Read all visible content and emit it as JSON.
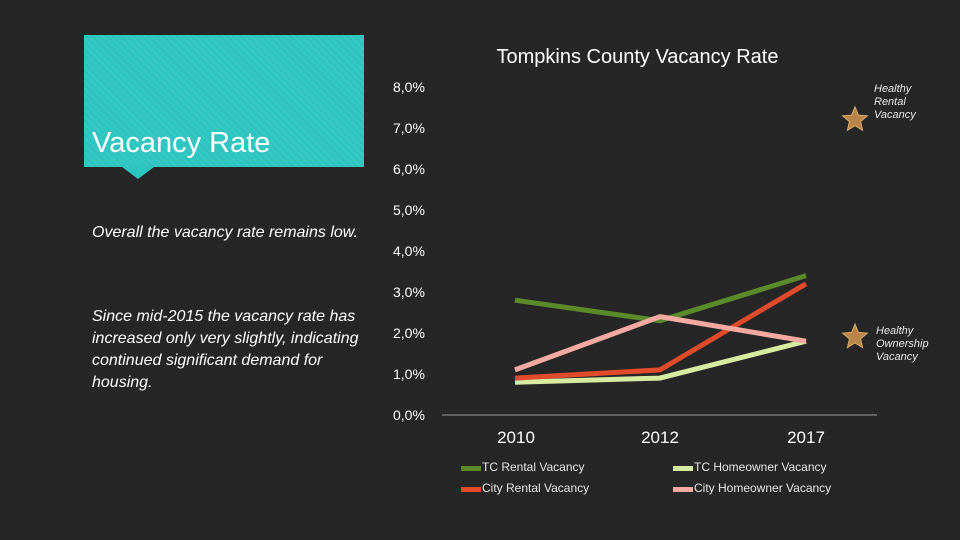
{
  "sidebar": {
    "heading": "Vacancy Rate",
    "paragraph1": "Overall the vacancy rate remains low.",
    "paragraph2": "Since mid-2015 the vacancy rate has increased only very slightly, indicating continued significant demand for housing."
  },
  "annotations": {
    "healthy_rental": "Healthy\nRental\nVacancy",
    "healthy_rental_value": 7.2,
    "healthy_ownership": "Healthy\nOwnership\nVacancy",
    "healthy_ownership_value": 1.9
  },
  "colors": {
    "tc_rental": "#5b8a2a",
    "tc_homeowner": "#d6eba0",
    "city_rental": "#e24a2c",
    "city_homeowner": "#f4aaa2",
    "star": "#b8864b",
    "axis": "#9a9a9a"
  },
  "chart_data": {
    "type": "line",
    "title": "Tompkins County Vacancy Rate",
    "x": [
      "2010",
      "2012",
      "2017"
    ],
    "ylim": [
      0,
      8
    ],
    "yticks": [
      "0,0%",
      "1,0%",
      "2,0%",
      "3,0%",
      "4,0%",
      "5,0%",
      "6,0%",
      "7,0%",
      "8,0%"
    ],
    "series": [
      {
        "name": "TC Rental Vacancy",
        "color_key": "tc_rental",
        "values": [
          [
            2009.4,
            2.8
          ],
          [
            2012,
            2.3
          ],
          [
            2017,
            3.4
          ]
        ]
      },
      {
        "name": "TC Homeowner Vacancy",
        "color_key": "tc_homeowner",
        "values": [
          [
            2009.4,
            0.8
          ],
          [
            2012,
            0.9
          ],
          [
            2017,
            1.8
          ]
        ]
      },
      {
        "name": "City Rental Vacancy",
        "color_key": "city_rental",
        "values": [
          [
            2009.4,
            0.9
          ],
          [
            2012,
            1.1
          ],
          [
            2017,
            3.2
          ]
        ]
      },
      {
        "name": "City Homeowner Vacancy",
        "color_key": "city_homeowner",
        "values": [
          [
            2009.4,
            1.1
          ],
          [
            2012,
            2.4
          ],
          [
            2017,
            1.8
          ]
        ]
      }
    ]
  }
}
